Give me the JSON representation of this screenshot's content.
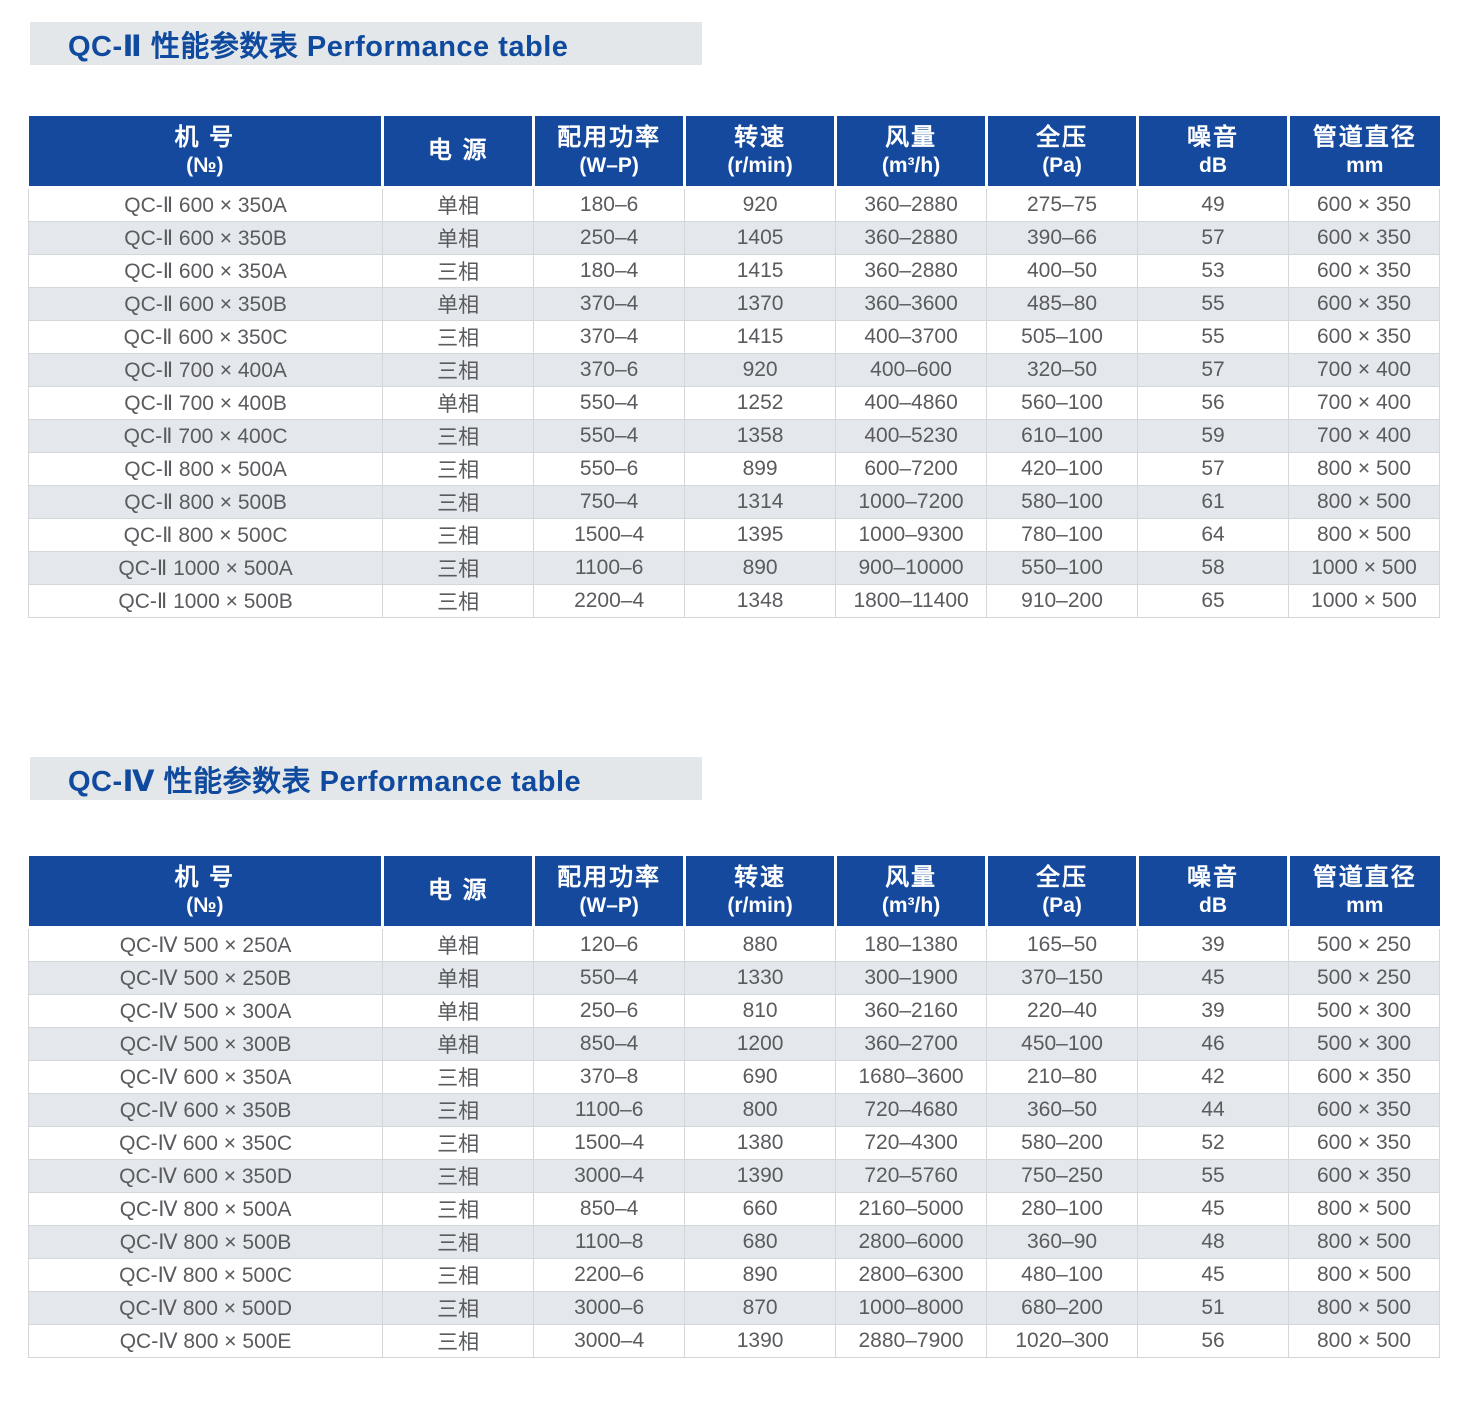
{
  "colors": {
    "header_bg": "#15499e",
    "title_text": "#0f4a9e",
    "title_bar_bg": "#e3e7ea",
    "row_stripe": "#e4e8ed",
    "body_text": "#595b5e",
    "cell_border": "#d3d7da"
  },
  "columns": [
    {
      "main": "机  号",
      "sub": "(№)"
    },
    {
      "main": "电  源",
      "sub": ""
    },
    {
      "main": "配用功率",
      "sub": "(W–P)"
    },
    {
      "main": "转速",
      "sub": "(r/min)"
    },
    {
      "main": "风量",
      "sub": "(m³/h)"
    },
    {
      "main": "全压",
      "sub": "(Pa)"
    },
    {
      "main": "噪音",
      "sub": "dB"
    },
    {
      "main": "管道直径",
      "sub": "mm"
    }
  ],
  "tables": [
    {
      "title": "QC-Ⅱ 性能参数表  Performance table",
      "rows": [
        [
          "QC-Ⅱ 600 × 350A",
          "单相",
          "180–6",
          "920",
          "360–2880",
          "275–75",
          "49",
          "600 × 350"
        ],
        [
          "QC-Ⅱ 600 × 350B",
          "单相",
          "250–4",
          "1405",
          "360–2880",
          "390–66",
          "57",
          "600 × 350"
        ],
        [
          "QC-Ⅱ 600 × 350A",
          "三相",
          "180–4",
          "1415",
          "360–2880",
          "400–50",
          "53",
          "600 × 350"
        ],
        [
          "QC-Ⅱ 600 × 350B",
          "单相",
          "370–4",
          "1370",
          "360–3600",
          "485–80",
          "55",
          "600 × 350"
        ],
        [
          "QC-Ⅱ 600 × 350C",
          "三相",
          "370–4",
          "1415",
          "400–3700",
          "505–100",
          "55",
          "600 × 350"
        ],
        [
          "QC-Ⅱ 700 × 400A",
          "三相",
          "370–6",
          "920",
          "400–600",
          "320–50",
          "57",
          "700 × 400"
        ],
        [
          "QC-Ⅱ 700 × 400B",
          "单相",
          "550–4",
          "1252",
          "400–4860",
          "560–100",
          "56",
          "700 × 400"
        ],
        [
          "QC-Ⅱ 700 × 400C",
          "三相",
          "550–4",
          "1358",
          "400–5230",
          "610–100",
          "59",
          "700 × 400"
        ],
        [
          "QC-Ⅱ 800 × 500A",
          "三相",
          "550–6",
          "899",
          "600–7200",
          "420–100",
          "57",
          "800 × 500"
        ],
        [
          "QC-Ⅱ 800 × 500B",
          "三相",
          "750–4",
          "1314",
          "1000–7200",
          "580–100",
          "61",
          "800 × 500"
        ],
        [
          "QC-Ⅱ 800 × 500C",
          "三相",
          "1500–4",
          "1395",
          "1000–9300",
          "780–100",
          "64",
          "800 × 500"
        ],
        [
          "QC-Ⅱ 1000 × 500A",
          "三相",
          "1100–6",
          "890",
          "900–10000",
          "550–100",
          "58",
          "1000 × 500"
        ],
        [
          "QC-Ⅱ 1000 × 500B",
          "三相",
          "2200–4",
          "1348",
          "1800–11400",
          "910–200",
          "65",
          "1000 × 500"
        ]
      ]
    },
    {
      "title": "QC-Ⅳ 性能参数表  Performance table",
      "rows": [
        [
          "QC-Ⅳ 500 × 250A",
          "单相",
          "120–6",
          "880",
          "180–1380",
          "165–50",
          "39",
          "500 × 250"
        ],
        [
          "QC-Ⅳ 500 × 250B",
          "单相",
          "550–4",
          "1330",
          "300–1900",
          "370–150",
          "45",
          "500 × 250"
        ],
        [
          "QC-Ⅳ 500 × 300A",
          "单相",
          "250–6",
          "810",
          "360–2160",
          "220–40",
          "39",
          "500 × 300"
        ],
        [
          "QC-Ⅳ 500 × 300B",
          "单相",
          "850–4",
          "1200",
          "360–2700",
          "450–100",
          "46",
          "500 × 300"
        ],
        [
          "QC-Ⅳ 600 × 350A",
          "三相",
          "370–8",
          "690",
          "1680–3600",
          "210–80",
          "42",
          "600 × 350"
        ],
        [
          "QC-Ⅳ 600 × 350B",
          "三相",
          "1100–6",
          "800",
          "720–4680",
          "360–50",
          "44",
          "600 × 350"
        ],
        [
          "QC-Ⅳ 600 × 350C",
          "三相",
          "1500–4",
          "1380",
          "720–4300",
          "580–200",
          "52",
          "600 × 350"
        ],
        [
          "QC-Ⅳ 600 × 350D",
          "三相",
          "3000–4",
          "1390",
          "720–5760",
          "750–250",
          "55",
          "600 × 350"
        ],
        [
          "QC-Ⅳ 800 × 500A",
          "三相",
          "850–4",
          "660",
          "2160–5000",
          "280–100",
          "45",
          "800 × 500"
        ],
        [
          "QC-Ⅳ 800 × 500B",
          "三相",
          "1100–8",
          "680",
          "2800–6000",
          "360–90",
          "48",
          "800 × 500"
        ],
        [
          "QC-Ⅳ 800 × 500C",
          "三相",
          "2200–6",
          "890",
          "2800–6300",
          "480–100",
          "45",
          "800 × 500"
        ],
        [
          "QC-Ⅳ 800 × 500D",
          "三相",
          "3000–6",
          "870",
          "1000–8000",
          "680–200",
          "51",
          "800 × 500"
        ],
        [
          "QC-Ⅳ 800 × 500E",
          "三相",
          "3000–4",
          "1390",
          "2880–7900",
          "1020–300",
          "56",
          "800 × 500"
        ]
      ]
    }
  ]
}
